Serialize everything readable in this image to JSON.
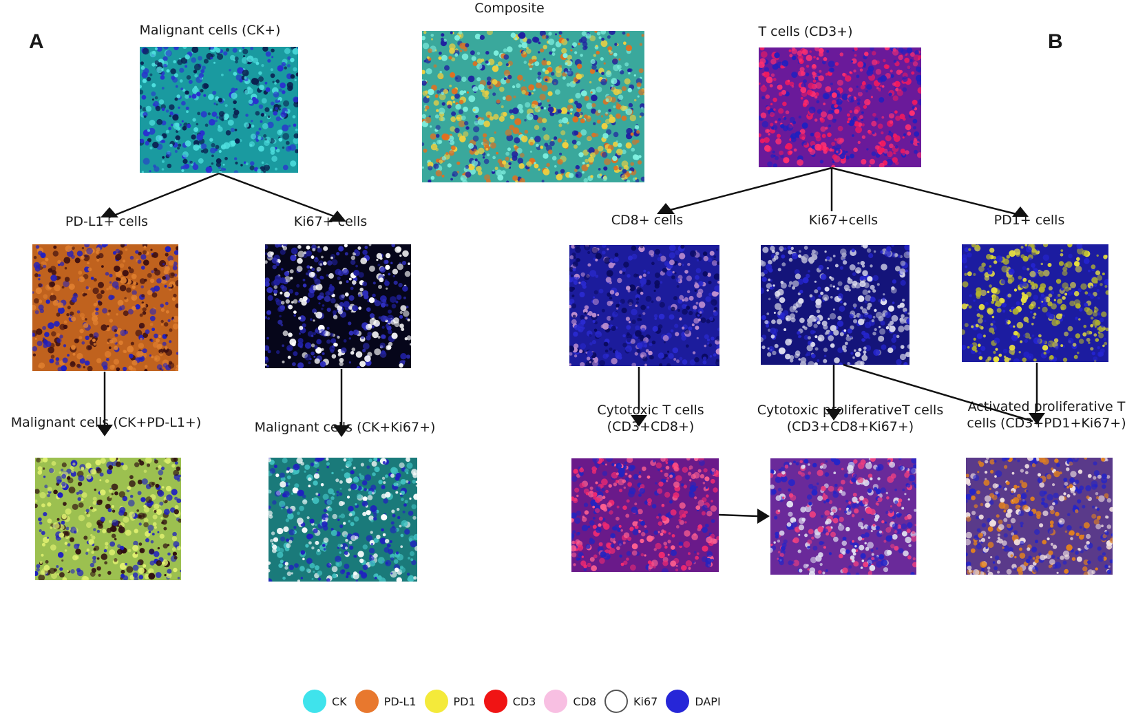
{
  "panels": {
    "a": "A",
    "b": "B"
  },
  "labels": {
    "composite": "Composite",
    "malignant_ck": "Malignant cells (CK+)",
    "t_cells": "T cells (CD3+)",
    "pdl1_cells": "PD-L1+ cells",
    "ki67_cells_a": "Ki67+ cells",
    "cd8_cells": "CD8+ cells",
    "ki67_cells_b": "Ki67+cells",
    "pd1_cells": "PD1+ cells",
    "malignant_ck_pdl1": "Malignant cells (CK+PD-L1+)",
    "malignant_ck_ki67": "Malignant cells (CK+Ki67+)",
    "cytotoxic_line1": "Cytotoxic T cells",
    "cytotoxic_line2": "(CD3+CD8+)",
    "cyto_prolif_line1": "Cytotoxic proliferativeT cells",
    "cyto_prolif_line2": "(CD3+CD8+Ki67+)",
    "activated_line1": "Activated proliferative T",
    "activated_line2": "cells (CD3+PD1+Ki67+)"
  },
  "legend": [
    {
      "label": "CK",
      "color": "#3fe3ec"
    },
    {
      "label": "PD-L1",
      "color": "#e8782e"
    },
    {
      "label": "PD1",
      "color": "#f4ea3a"
    },
    {
      "label": "CD3",
      "color": "#f01414"
    },
    {
      "label": "CD8",
      "color": "#f8bfe2"
    },
    {
      "label": "Ki67",
      "color": "#ffffff"
    },
    {
      "label": "DAPI",
      "color": "#2626d8"
    }
  ],
  "image_fills": {
    "ck": "#1a9aa0",
    "composite": "#3aa89c",
    "tcell": "#6a1a9a",
    "pdl1": "#c0621e",
    "ki67_a": "#06061a",
    "cd8": "#1c1c9c",
    "ki67_b": "#14147a",
    "pd1": "#1c1ca0",
    "ck_pdl1": "#9cc050",
    "ck_ki67": "#1a7a7a",
    "cytotoxic": "#6a1a8a",
    "cyto_prolif": "#6a2a9a",
    "activated": "#5a3a8a"
  }
}
